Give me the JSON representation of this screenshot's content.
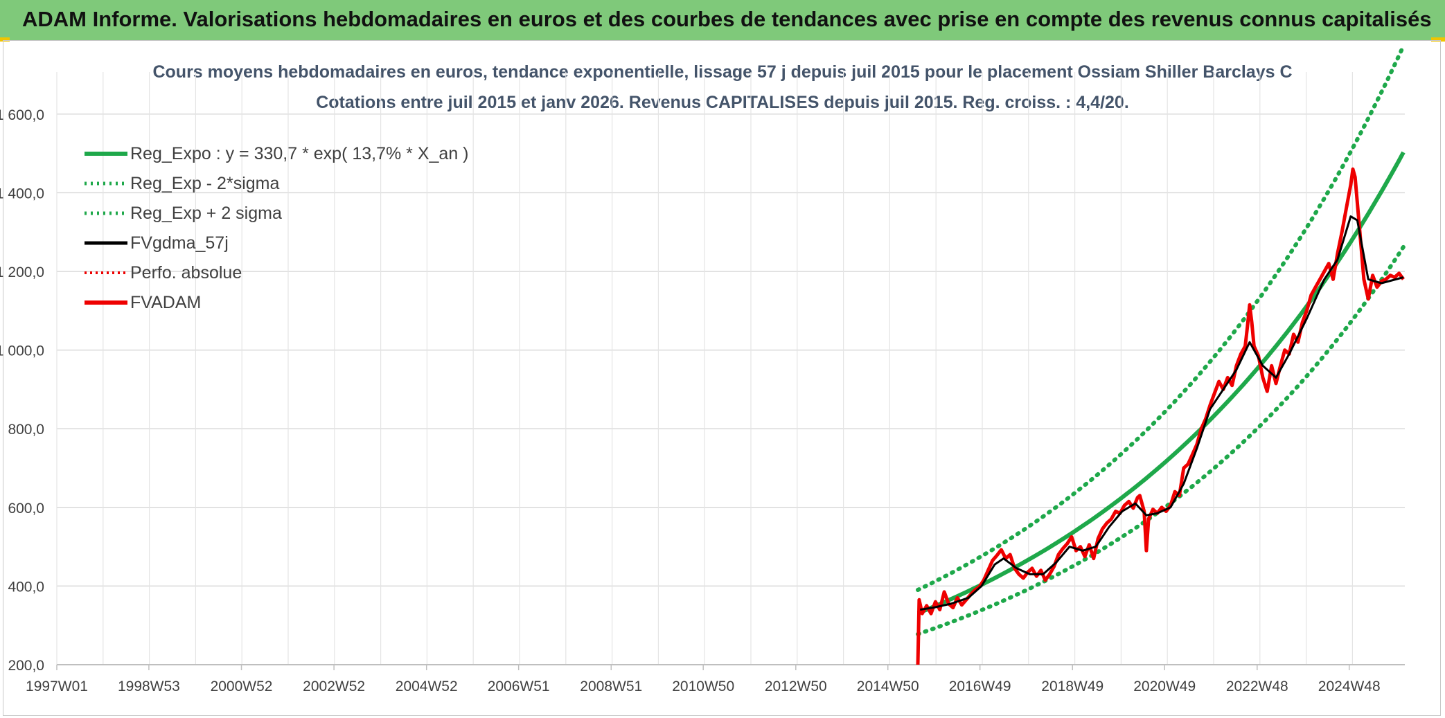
{
  "header": {
    "title": "ADAM Informe. Valorisations hebdomadaires en euros et des courbes de tendances avec prise en compte des revenus connus capitalisés"
  },
  "colors": {
    "header_bg": "#7fc97a",
    "reg_green": "#1ea84a",
    "black": "#000000",
    "red": "#ee0000",
    "grid": "#d9d9d9"
  },
  "chart_data": {
    "type": "line",
    "title_line1": "Cours moyens hebdomadaires en euros, tendance exponentielle, lissage 57 j depuis juil 2015 pour le placement Ossiam Shiller Barclays C",
    "title_line2": "Cotations entre juil 2015  et janv 2026. Revenus CAPITALISES depuis juil 2015. Reg. croiss. : 4,4/20.",
    "x_tick_labels": [
      "1997W01",
      "1998W53",
      "2000W52",
      "2002W52",
      "2004W52",
      "2006W51",
      "2008W51",
      "2010W50",
      "2012W50",
      "2014W50",
      "2016W49",
      "2018W49",
      "2020W49",
      "2022W48",
      "2024W48"
    ],
    "x_tick_years": [
      1997.0,
      1998.99,
      2000.99,
      2002.99,
      2004.99,
      2006.98,
      2008.98,
      2010.97,
      2012.97,
      2014.96,
      2016.95,
      2018.95,
      2020.94,
      2022.94,
      2024.93
    ],
    "xlim": [
      1997.0,
      2025.2
    ],
    "y_tick_labels": [
      "200,0",
      "400,0",
      "600,0",
      "800,0",
      "1 000,0",
      "1 200,0",
      "1 400,0",
      "1 600,0"
    ],
    "ylim": [
      200,
      1700
    ],
    "legend": [
      {
        "label": "Reg_Expo : y = 330,7 * exp( 13,7% *  X_an )",
        "style": "solid-green"
      },
      {
        "label": "Reg_Exp - 2*sigma",
        "style": "dotted-green"
      },
      {
        "label": "Reg_Exp + 2 sigma",
        "style": "dotted-green"
      },
      {
        "label": "FVgdma_57j",
        "style": "solid-black"
      },
      {
        "label": "Perfo. absolue",
        "style": "dotted-red"
      },
      {
        "label": "FVADAM",
        "style": "solid-red"
      }
    ],
    "legend_position": "top-left",
    "grid": true,
    "regression": {
      "start_year": 2015.55,
      "end_year": 2025.1,
      "a": 330.7,
      "b": 0.137,
      "lower_factor": 0.84,
      "upper_factor": 1.18
    },
    "series": [
      {
        "name": "FVADAM",
        "points": [
          [
            2015.55,
            200
          ],
          [
            2015.58,
            365
          ],
          [
            2015.65,
            330
          ],
          [
            2015.75,
            350
          ],
          [
            2015.85,
            330
          ],
          [
            2015.95,
            360
          ],
          [
            2016.05,
            340
          ],
          [
            2016.15,
            385
          ],
          [
            2016.25,
            355
          ],
          [
            2016.35,
            345
          ],
          [
            2016.45,
            370
          ],
          [
            2016.55,
            352
          ],
          [
            2016.65,
            365
          ],
          [
            2016.75,
            378
          ],
          [
            2016.85,
            390
          ],
          [
            2016.95,
            398
          ],
          [
            2017.05,
            415
          ],
          [
            2017.15,
            440
          ],
          [
            2017.25,
            465
          ],
          [
            2017.35,
            478
          ],
          [
            2017.45,
            492
          ],
          [
            2017.55,
            470
          ],
          [
            2017.65,
            480
          ],
          [
            2017.75,
            445
          ],
          [
            2017.85,
            430
          ],
          [
            2017.95,
            420
          ],
          [
            2018.05,
            435
          ],
          [
            2018.15,
            445
          ],
          [
            2018.25,
            425
          ],
          [
            2018.35,
            440
          ],
          [
            2018.45,
            415
          ],
          [
            2018.55,
            430
          ],
          [
            2018.65,
            450
          ],
          [
            2018.75,
            480
          ],
          [
            2018.85,
            495
          ],
          [
            2018.95,
            508
          ],
          [
            2019.05,
            525
          ],
          [
            2019.15,
            490
          ],
          [
            2019.25,
            500
          ],
          [
            2019.35,
            475
          ],
          [
            2019.45,
            505
          ],
          [
            2019.55,
            470
          ],
          [
            2019.65,
            520
          ],
          [
            2019.75,
            545
          ],
          [
            2019.85,
            560
          ],
          [
            2019.95,
            570
          ],
          [
            2020.05,
            590
          ],
          [
            2020.15,
            585
          ],
          [
            2020.25,
            605
          ],
          [
            2020.35,
            615
          ],
          [
            2020.45,
            598
          ],
          [
            2020.55,
            625
          ],
          [
            2020.6,
            630
          ],
          [
            2020.7,
            590
          ],
          [
            2020.75,
            490
          ],
          [
            2020.8,
            570
          ],
          [
            2020.9,
            595
          ],
          [
            2021.0,
            585
          ],
          [
            2021.1,
            600
          ],
          [
            2021.2,
            590
          ],
          [
            2021.3,
            605
          ],
          [
            2021.4,
            640
          ],
          [
            2021.5,
            630
          ],
          [
            2021.6,
            700
          ],
          [
            2021.7,
            710
          ],
          [
            2021.8,
            735
          ],
          [
            2021.9,
            760
          ],
          [
            2022.0,
            800
          ],
          [
            2022.1,
            825
          ],
          [
            2022.2,
            860
          ],
          [
            2022.3,
            890
          ],
          [
            2022.4,
            920
          ],
          [
            2022.5,
            900
          ],
          [
            2022.6,
            930
          ],
          [
            2022.7,
            910
          ],
          [
            2022.8,
            960
          ],
          [
            2022.9,
            990
          ],
          [
            2023.0,
            1010
          ],
          [
            2023.05,
            1060
          ],
          [
            2023.1,
            1115
          ],
          [
            2023.15,
            1070
          ],
          [
            2023.2,
            1010
          ],
          [
            2023.3,
            985
          ],
          [
            2023.4,
            930
          ],
          [
            2023.5,
            895
          ],
          [
            2023.6,
            960
          ],
          [
            2023.7,
            915
          ],
          [
            2023.8,
            960
          ],
          [
            2023.9,
            1000
          ],
          [
            2024.0,
            990
          ],
          [
            2024.1,
            1040
          ],
          [
            2024.2,
            1020
          ],
          [
            2024.3,
            1070
          ],
          [
            2024.4,
            1100
          ],
          [
            2024.5,
            1140
          ],
          [
            2024.6,
            1160
          ],
          [
            2024.7,
            1180
          ],
          [
            2024.8,
            1200
          ],
          [
            2024.9,
            1220
          ],
          [
            2025.0,
            1180
          ],
          [
            2025.1,
            1245
          ],
          [
            2025.2,
            1300
          ],
          [
            2025.3,
            1360
          ],
          [
            2025.4,
            1420
          ],
          [
            2025.45,
            1460
          ],
          [
            2025.5,
            1440
          ],
          [
            2025.6,
            1310
          ],
          [
            2025.7,
            1180
          ],
          [
            2025.8,
            1130
          ],
          [
            2025.9,
            1190
          ],
          [
            2026.0,
            1160
          ],
          [
            2026.1,
            1175
          ],
          [
            2026.2,
            1180
          ],
          [
            2026.3,
            1190
          ],
          [
            2026.4,
            1185
          ],
          [
            2026.5,
            1195
          ],
          [
            2026.6,
            1180
          ]
        ]
      },
      {
        "name": "FVgdma_57j",
        "points": [
          [
            2015.6,
            340
          ],
          [
            2015.9,
            345
          ],
          [
            2016.3,
            355
          ],
          [
            2016.7,
            370
          ],
          [
            2017.0,
            400
          ],
          [
            2017.3,
            455
          ],
          [
            2017.5,
            470
          ],
          [
            2017.8,
            445
          ],
          [
            2018.1,
            430
          ],
          [
            2018.4,
            430
          ],
          [
            2018.7,
            460
          ],
          [
            2019.0,
            500
          ],
          [
            2019.3,
            490
          ],
          [
            2019.6,
            500
          ],
          [
            2019.9,
            550
          ],
          [
            2020.2,
            590
          ],
          [
            2020.5,
            610
          ],
          [
            2020.75,
            580
          ],
          [
            2021.0,
            585
          ],
          [
            2021.3,
            600
          ],
          [
            2021.6,
            660
          ],
          [
            2021.9,
            750
          ],
          [
            2022.2,
            850
          ],
          [
            2022.5,
            900
          ],
          [
            2022.8,
            950
          ],
          [
            2023.1,
            1020
          ],
          [
            2023.4,
            960
          ],
          [
            2023.7,
            930
          ],
          [
            2024.0,
            990
          ],
          [
            2024.4,
            1080
          ],
          [
            2024.8,
            1180
          ],
          [
            2025.1,
            1230
          ],
          [
            2025.4,
            1340
          ],
          [
            2025.55,
            1330
          ],
          [
            2025.8,
            1180
          ],
          [
            2026.1,
            1170
          ],
          [
            2026.6,
            1185
          ]
        ]
      }
    ]
  }
}
